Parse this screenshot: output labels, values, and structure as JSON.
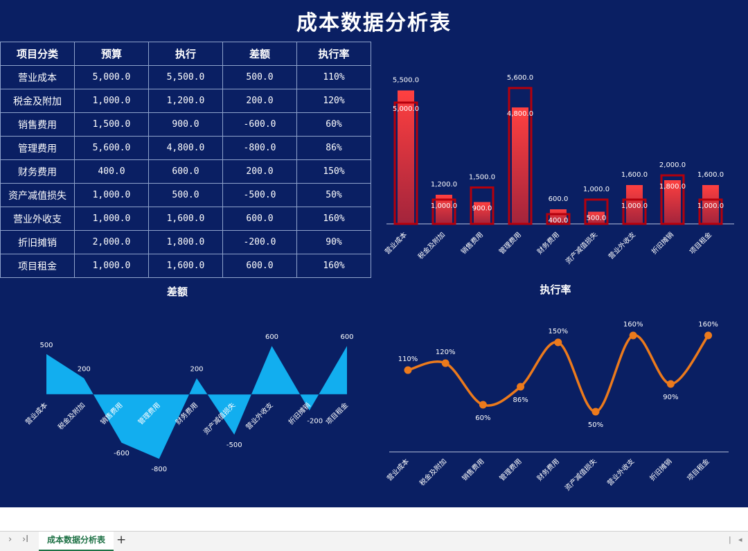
{
  "title": "成本数据分析表",
  "table": {
    "headers": [
      "项目分类",
      "预算",
      "执行",
      "差额",
      "执行率"
    ],
    "rows": [
      [
        "营业成本",
        "5,000.0",
        "5,500.0",
        "500.0",
        "110%"
      ],
      [
        "税金及附加",
        "1,000.0",
        "1,200.0",
        "200.0",
        "120%"
      ],
      [
        "销售费用",
        "1,500.0",
        "900.0",
        "-600.0",
        "60%"
      ],
      [
        "管理费用",
        "5,600.0",
        "4,800.0",
        "-800.0",
        "86%"
      ],
      [
        "财务费用",
        "400.0",
        "600.0",
        "200.0",
        "150%"
      ],
      [
        "资产减值损失",
        "1,000.0",
        "500.0",
        "-500.0",
        "50%"
      ],
      [
        "营业外收支",
        "1,000.0",
        "1,600.0",
        "600.0",
        "160%"
      ],
      [
        "折旧摊销",
        "2,000.0",
        "1,800.0",
        "-200.0",
        "90%"
      ],
      [
        "项目租金",
        "1,000.0",
        "1,600.0",
        "600.0",
        "160%"
      ]
    ]
  },
  "chart_data": [
    {
      "type": "bar",
      "title": "",
      "categories": [
        "营业成本",
        "税金及附加",
        "销售费用",
        "管理费用",
        "财务费用",
        "资产减值损失",
        "营业外收支",
        "折旧摊销",
        "项目租金"
      ],
      "series": [
        {
          "values": [
            5000,
            1000,
            1500,
            5600,
            400,
            1000,
            1000,
            2000,
            1000
          ],
          "labels": [
            "5,000.0",
            "1,000.0",
            "1,500.0",
            "5,600.0",
            "400.0",
            "1,000.0",
            "1,000.0",
            "2,000.0",
            "1,000.0"
          ],
          "style": "outline",
          "color": "#b4000c"
        },
        {
          "values": [
            5500,
            1200,
            900,
            4800,
            600,
            500,
            1600,
            1800,
            1600
          ],
          "labels": [
            "5,500.0",
            "1,200.0",
            "900.0",
            "4,800.0",
            "600.0",
            "500.0",
            "1,600.0",
            "1,800.0",
            "1,600.0"
          ],
          "style": "filled",
          "color": "#ff4040"
        }
      ],
      "ylim": [
        0,
        6000
      ]
    },
    {
      "type": "area",
      "title": "差额",
      "categories": [
        "营业成本",
        "税金及附加",
        "销售费用",
        "管理费用",
        "财务费用",
        "资产减值损失",
        "营业外收支",
        "折旧摊销",
        "项目租金"
      ],
      "values": [
        500,
        200,
        -600,
        -800,
        200,
        -500,
        600,
        -200,
        600
      ],
      "labels": [
        "500",
        "200",
        "-600",
        "-800",
        "200",
        "-500",
        "600",
        "-200",
        "600"
      ],
      "ylim": [
        -800,
        600
      ],
      "color": "#12aeef"
    },
    {
      "type": "line",
      "title": "执行率",
      "categories": [
        "营业成本",
        "税金及附加",
        "销售费用",
        "管理费用",
        "财务费用",
        "资产减值损失",
        "营业外收支",
        "折旧摊销",
        "项目租金"
      ],
      "values": [
        110,
        120,
        60,
        86,
        150,
        50,
        160,
        90,
        160
      ],
      "labels": [
        "110%",
        "120%",
        "60%",
        "86%",
        "150%",
        "50%",
        "160%",
        "90%",
        "160%"
      ],
      "ylim": [
        50,
        160
      ],
      "color": "#ec7a1c"
    }
  ],
  "footer": {
    "sheet_tab": "成本数据分析表",
    "add_label": "+",
    "nav_next": "›",
    "nav_last": "›I"
  }
}
